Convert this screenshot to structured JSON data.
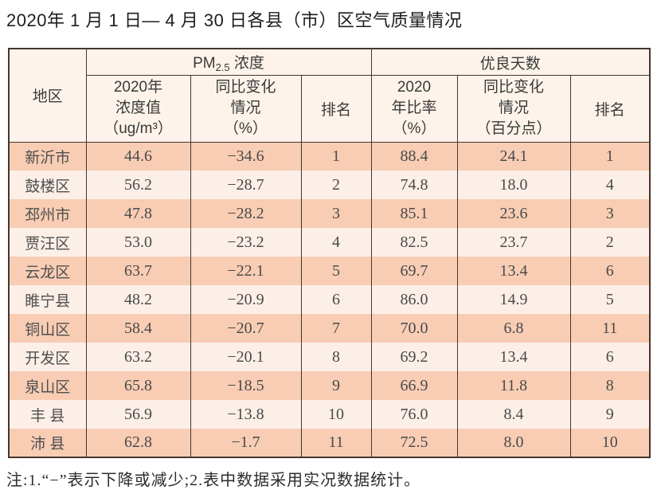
{
  "title": "2020年 1 月 1 日— 4 月 30 日各县（市）区空气质量情况",
  "note": "注:1.“−”表示下降或减少;2.表中数据采用实况数据统计。",
  "colors": {
    "border": "#44362e",
    "header_bg": "#fdf3ea",
    "row_odd_bg": "#f8cdb4",
    "row_even_bg": "#fcefe8"
  },
  "table": {
    "region_header": "地区",
    "group_pm": {
      "prefix": "PM",
      "sub": "2.5",
      "suffix": " 浓度"
    },
    "group_good_days": "优良天数",
    "subheaders": {
      "pm_value": "2020年\n浓度值\n（ug/m³）",
      "pm_change": "同比变化\n情况\n（%）",
      "pm_rank": "排名",
      "ratio": "2020\n年比率\n（%）",
      "ratio_change": "同比变化\n情况\n（百分点）",
      "ratio_rank": "排名"
    },
    "rows": [
      {
        "region": "新沂市",
        "pm_value": "44.6",
        "pm_change": "−34.6",
        "pm_rank": "1",
        "ratio": "88.4",
        "ratio_change": "24.1",
        "ratio_rank": "1"
      },
      {
        "region": "鼓楼区",
        "pm_value": "56.2",
        "pm_change": "−28.7",
        "pm_rank": "2",
        "ratio": "74.8",
        "ratio_change": "18.0",
        "ratio_rank": "4"
      },
      {
        "region": "邳州市",
        "pm_value": "47.8",
        "pm_change": "−28.2",
        "pm_rank": "3",
        "ratio": "85.1",
        "ratio_change": "23.6",
        "ratio_rank": "3"
      },
      {
        "region": "贾汪区",
        "pm_value": "53.0",
        "pm_change": "−23.2",
        "pm_rank": "4",
        "ratio": "82.5",
        "ratio_change": "23.7",
        "ratio_rank": "2"
      },
      {
        "region": "云龙区",
        "pm_value": "63.7",
        "pm_change": "−22.1",
        "pm_rank": "5",
        "ratio": "69.7",
        "ratio_change": "13.4",
        "ratio_rank": "6"
      },
      {
        "region": "睢宁县",
        "pm_value": "48.2",
        "pm_change": "−20.9",
        "pm_rank": "6",
        "ratio": "86.0",
        "ratio_change": "14.9",
        "ratio_rank": "5"
      },
      {
        "region": "铜山区",
        "pm_value": "58.4",
        "pm_change": "−20.7",
        "pm_rank": "7",
        "ratio": "70.0",
        "ratio_change": "6.8",
        "ratio_rank": "11"
      },
      {
        "region": "开发区",
        "pm_value": "63.2",
        "pm_change": "−20.1",
        "pm_rank": "8",
        "ratio": "69.2",
        "ratio_change": "13.4",
        "ratio_rank": "6"
      },
      {
        "region": "泉山区",
        "pm_value": "65.8",
        "pm_change": "−18.5",
        "pm_rank": "9",
        "ratio": "66.9",
        "ratio_change": "11.8",
        "ratio_rank": "8"
      },
      {
        "region": "丰 县",
        "pm_value": "56.9",
        "pm_change": "−13.8",
        "pm_rank": "10",
        "ratio": "76.0",
        "ratio_change": "8.4",
        "ratio_rank": "9"
      },
      {
        "region": "沛 县",
        "pm_value": "62.8",
        "pm_change": "−1.7",
        "pm_rank": "11",
        "ratio": "72.5",
        "ratio_change": "8.0",
        "ratio_rank": "10"
      }
    ]
  }
}
